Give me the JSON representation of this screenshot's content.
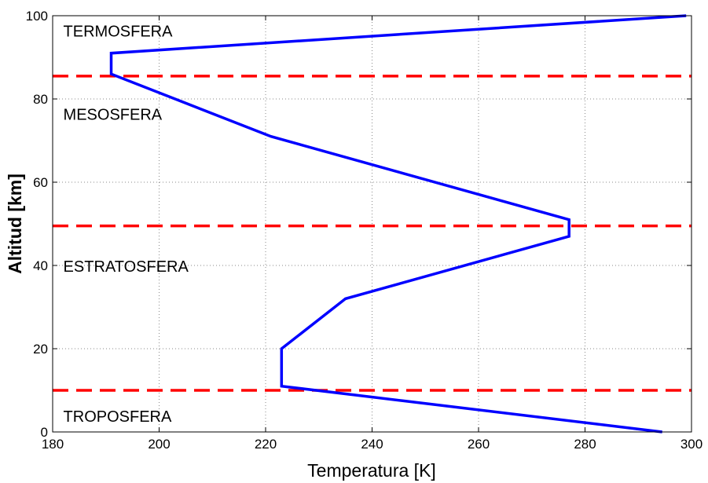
{
  "chart_data": {
    "type": "line",
    "title": "",
    "xlabel": "Temperatura [K]",
    "ylabel": "Altitud [km]",
    "xlim": [
      180,
      300
    ],
    "ylim": [
      0,
      100
    ],
    "xticks": [
      180,
      200,
      220,
      240,
      260,
      280,
      300
    ],
    "yticks": [
      0,
      20,
      40,
      60,
      80,
      100
    ],
    "grid": true,
    "series": [
      {
        "color": "#0000ff",
        "x": [
          294.5,
          223,
          223,
          235,
          277,
          277,
          221,
          191,
          191,
          299
        ],
        "y": [
          0,
          11,
          20,
          32,
          47,
          51,
          71,
          86,
          91,
          100
        ]
      }
    ],
    "boundaries": [
      {
        "y": 10,
        "color": "#ff0000"
      },
      {
        "y": 49.5,
        "color": "#ff0000"
      },
      {
        "y": 85.5,
        "color": "#ff0000"
      }
    ],
    "annotations": [
      {
        "text": "TERMOSFERA",
        "x": 182,
        "y": 95
      },
      {
        "text": "MESOSFERA",
        "x": 182,
        "y": 75
      },
      {
        "text": "ESTRATOSFERA",
        "x": 182,
        "y": 38.5
      },
      {
        "text": "TROPOSFERA",
        "x": 182,
        "y": 2.5
      }
    ]
  }
}
